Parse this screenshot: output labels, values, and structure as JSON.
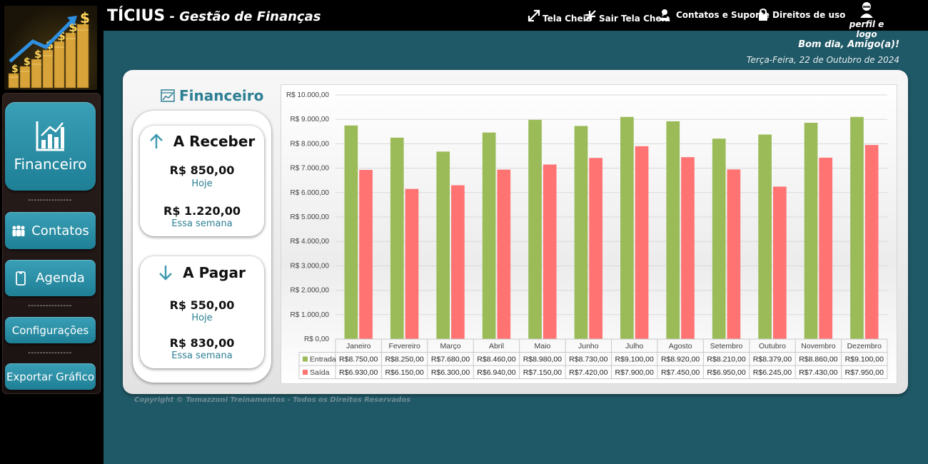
{
  "header": {
    "title": "TÍCIUS",
    "separator": " - ",
    "subtitle": "Gestão de Finanças",
    "links": {
      "fullscreen": "Tela Cheia",
      "exit_fullscreen": "Sair Tela Cheia",
      "contacts_support": "Contatos e Suporte",
      "terms": "Direitos de uso",
      "profile": "perfil e logo"
    }
  },
  "sidebar": {
    "financeiro": "Financeiro",
    "contatos": "Contatos",
    "agenda": "Agenda",
    "configuracoes": "Configurações",
    "exportar": "Exportar Gráfico",
    "separator": "---------------"
  },
  "greeting": {
    "text": "Bom dia, Amigo(a)!",
    "date": "Terça-Feira, 22 de Outubro de 2024"
  },
  "section_title": "Financeiro",
  "receivable": {
    "title": "A Receber",
    "today_value": "R$ 850,00",
    "today_label": "Hoje",
    "week_value": "R$ 1.220,00",
    "week_label": "Essa semana"
  },
  "payable": {
    "title": "A Pagar",
    "today_value": "R$ 550,00",
    "today_label": "Hoje",
    "week_value": "R$ 830,00",
    "week_label": "Essa semana"
  },
  "colors": {
    "entrada": "#9bbb59",
    "saida": "#ff7373",
    "accent": "#2c7f93"
  },
  "chart_data": {
    "type": "bar",
    "categories": [
      "Janeiro",
      "Fevereiro",
      "Março",
      "Abril",
      "Maio",
      "Junho",
      "Julho",
      "Agosto",
      "Setembro",
      "Outubro",
      "Novembro",
      "Dezembro"
    ],
    "series": [
      {
        "name": "Entrada",
        "values": [
          8750,
          8250,
          7680,
          8460,
          8980,
          8730,
          9100,
          8920,
          8210,
          8379,
          8860,
          9100
        ],
        "labels": [
          "R$8.750,00",
          "R$8.250,00",
          "R$7.680,00",
          "R$8.460,00",
          "R$8.980,00",
          "R$8.730,00",
          "R$9.100,00",
          "R$8.920,00",
          "R$8.210,00",
          "R$8.379,00",
          "R$8.860,00",
          "R$9.100,00"
        ]
      },
      {
        "name": "Saída",
        "values": [
          6930,
          6150,
          6300,
          6940,
          7150,
          7420,
          7900,
          7450,
          6950,
          6245,
          7430,
          7950
        ],
        "labels": [
          "R$6.930,00",
          "R$6.150,00",
          "R$6.300,00",
          "R$6.940,00",
          "R$7.150,00",
          "R$7.420,00",
          "R$7.900,00",
          "R$7.450,00",
          "R$6.950,00",
          "R$6.245,00",
          "R$7.430,00",
          "R$7.950,00"
        ]
      }
    ],
    "yticks": [
      "R$ 0,00",
      "R$ 1.000,00",
      "R$ 2.000,00",
      "R$ 3.000,00",
      "R$ 4.000,00",
      "R$ 5.000,00",
      "R$ 6.000,00",
      "R$ 7.000,00",
      "R$ 8.000,00",
      "R$ 9.000,00",
      "R$ 10.000,00"
    ],
    "ylim": [
      0,
      10000
    ],
    "grid": true,
    "legend": "data-table"
  },
  "footer": {
    "copyright": "Copyright © Tomazzoni Treinamentos - Todos os Direitos Reservados"
  }
}
